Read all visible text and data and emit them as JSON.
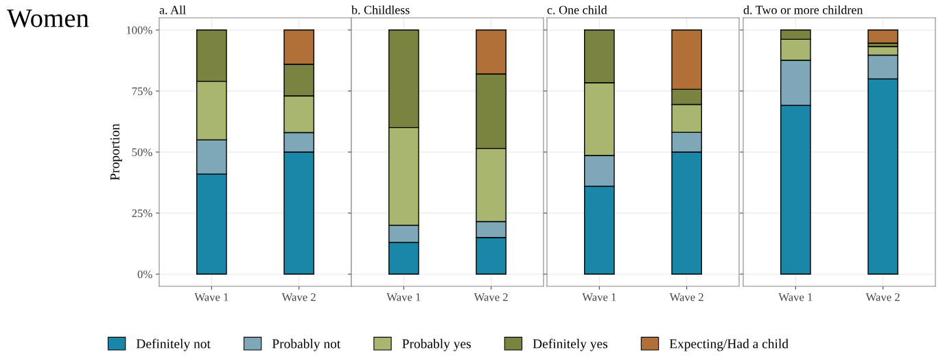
{
  "chart_data": [
    {
      "type": "bar",
      "stacked": true,
      "title": "a. All",
      "ylabel": "Proportion",
      "annotations": [
        "Women"
      ],
      "categories": [
        "Wave 1",
        "Wave 2"
      ],
      "ylim": [
        -5,
        105
      ],
      "yticks": [
        {
          "value": 0,
          "label": "0%"
        },
        {
          "value": 25,
          "label": "25%"
        },
        {
          "value": 50,
          "label": "50%"
        },
        {
          "value": 75,
          "label": "75%"
        },
        {
          "value": 100,
          "label": "100%"
        }
      ],
      "grid": true,
      "legend": "bottom",
      "series": [
        {
          "name": "Definitely not",
          "color": "#1a86a8",
          "values": [
            41,
            50
          ]
        },
        {
          "name": "Probably not",
          "color": "#7ea8b8",
          "values": [
            14,
            8
          ]
        },
        {
          "name": "Probably yes",
          "color": "#a9b66f",
          "values": [
            24,
            15
          ]
        },
        {
          "name": "Definitely yes",
          "color": "#7b8340",
          "values": [
            21,
            13
          ]
        },
        {
          "name": "Expecting/Had a child",
          "color": "#b07038",
          "values": [
            null,
            14
          ]
        }
      ]
    },
    {
      "type": "bar",
      "stacked": true,
      "title": "b. Childless",
      "categories": [
        "Wave 1",
        "Wave 2"
      ],
      "ylim": [
        -5,
        105
      ],
      "yticks": [
        {
          "value": 0,
          "label": null
        },
        {
          "value": 25,
          "label": null
        },
        {
          "value": 50,
          "label": null
        },
        {
          "value": 75,
          "label": null
        },
        {
          "value": 100,
          "label": null
        }
      ],
      "tick_labels": "x",
      "grid": true,
      "series": [
        {
          "color": "#1a86a8",
          "values": [
            13,
            15
          ]
        },
        {
          "color": "#7ea8b8",
          "values": [
            7,
            6.5
          ]
        },
        {
          "color": "#a9b66f",
          "values": [
            40,
            30
          ]
        },
        {
          "color": "#7b8340",
          "values": [
            40,
            30.5
          ]
        },
        {
          "color": "#b07038",
          "values": [
            null,
            18
          ]
        }
      ]
    },
    {
      "type": "bar",
      "stacked": true,
      "title": "c. One child",
      "categories": [
        "Wave 1",
        "Wave 2"
      ],
      "ylim": [
        -5,
        105
      ],
      "yticks": [
        {
          "value": 0,
          "label": null
        },
        {
          "value": 25,
          "label": null
        },
        {
          "value": 50,
          "label": null
        },
        {
          "value": 75,
          "label": null
        },
        {
          "value": 100,
          "label": null
        }
      ],
      "tick_labels": "x",
      "grid": true,
      "series": [
        {
          "color": "#1a86a8",
          "values": [
            36,
            50
          ]
        },
        {
          "color": "#7ea8b8",
          "values": [
            12.6,
            8.1
          ]
        },
        {
          "color": "#a9b66f",
          "values": [
            29.8,
            11.4
          ]
        },
        {
          "color": "#7b8340",
          "values": [
            21.6,
            6.2
          ]
        },
        {
          "color": "#b07038",
          "values": [
            null,
            24.3
          ]
        }
      ]
    },
    {
      "type": "bar",
      "stacked": true,
      "title": "d. Two or more children",
      "categories": [
        "Wave 1",
        "Wave 2"
      ],
      "ylim": [
        -5,
        105
      ],
      "yticks": [
        {
          "value": 0,
          "label": null
        },
        {
          "value": 25,
          "label": null
        },
        {
          "value": 50,
          "label": null
        },
        {
          "value": 75,
          "label": null
        },
        {
          "value": 100,
          "label": null
        }
      ],
      "tick_labels": "x",
      "grid": true,
      "series": [
        {
          "color": "#1a86a8",
          "values": [
            69.2,
            80
          ]
        },
        {
          "color": "#7ea8b8",
          "values": [
            18.4,
            9.7
          ]
        },
        {
          "color": "#a9b66f",
          "values": [
            8.6,
            3.5
          ]
        },
        {
          "color": "#7b8340",
          "values": [
            3.8,
            1.4
          ]
        },
        {
          "color": "#b07038",
          "values": [
            null,
            5.4
          ]
        }
      ]
    }
  ]
}
